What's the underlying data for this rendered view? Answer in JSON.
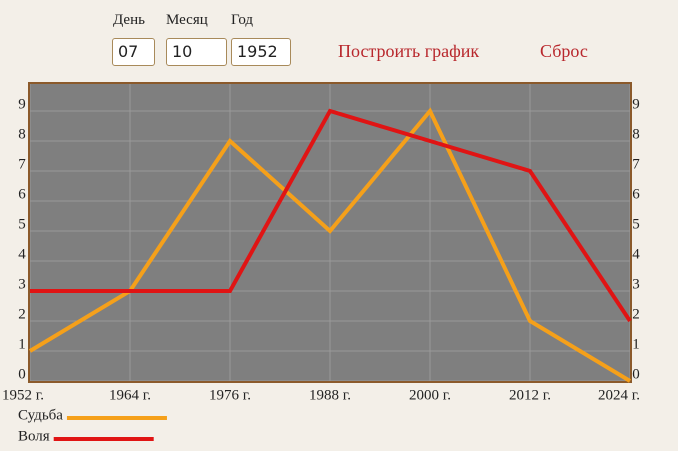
{
  "form": {
    "fields": [
      {
        "label": "День",
        "value": "07"
      },
      {
        "label": "Месяц",
        "value": "10"
      },
      {
        "label": "Год",
        "value": "1952"
      }
    ],
    "buttons": [
      "Построить график",
      "Сброс"
    ]
  },
  "chart_data": {
    "type": "line",
    "categories": [
      "1952 г.",
      "1964 г.",
      "1976 г.",
      "1988 г.",
      "2000 г.",
      "2012 г.",
      "2024 г."
    ],
    "series": [
      {
        "name": "Судьба",
        "color": "#f5a01a",
        "values": [
          1,
          3,
          8,
          5,
          9,
          2,
          0
        ]
      },
      {
        "name": "Воля",
        "color": "#e01414",
        "values": [
          3,
          3,
          3,
          9,
          8,
          7,
          2
        ]
      }
    ],
    "ylim": [
      0,
      10
    ],
    "yticks": [
      0,
      1,
      2,
      3,
      4,
      5,
      6,
      7,
      8,
      9
    ],
    "grid": true
  }
}
